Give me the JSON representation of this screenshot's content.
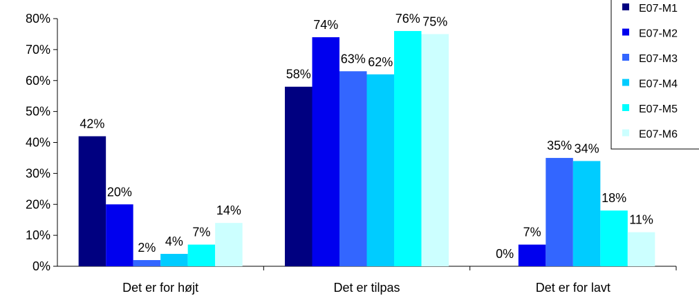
{
  "chart_data": {
    "type": "bar",
    "categories": [
      "Det er for højt",
      "Det er tilpas",
      "Det er for lavt"
    ],
    "series": [
      {
        "name": "E07-M1",
        "color": "#000080",
        "values": [
          42,
          58,
          0
        ]
      },
      {
        "name": "E07-M2",
        "color": "#0000EE",
        "values": [
          20,
          74,
          7
        ]
      },
      {
        "name": "E07-M3",
        "color": "#3366FF",
        "values": [
          2,
          63,
          35
        ]
      },
      {
        "name": "E07-M4",
        "color": "#00CCFF",
        "values": [
          4,
          62,
          34
        ]
      },
      {
        "name": "E07-M5",
        "color": "#00FFFF",
        "values": [
          7,
          76,
          18
        ]
      },
      {
        "name": "E07-M6",
        "color": "#CCFFFF",
        "values": [
          14,
          75,
          11
        ]
      }
    ],
    "data_labels": [
      [
        "42%",
        "20%",
        "2%",
        "4%",
        "7%",
        "14%"
      ],
      [
        "58%",
        "74%",
        "63%",
        "62%",
        "76%",
        "75%"
      ],
      [
        "0%",
        "7%",
        "35%",
        "34%",
        "18%",
        "11%"
      ]
    ],
    "y_ticks": [
      "0%",
      "10%",
      "20%",
      "30%",
      "40%",
      "50%",
      "60%",
      "70%",
      "80%"
    ],
    "ylim": [
      0,
      80
    ],
    "unit": "%",
    "legend": "top-right",
    "grid": false
  }
}
